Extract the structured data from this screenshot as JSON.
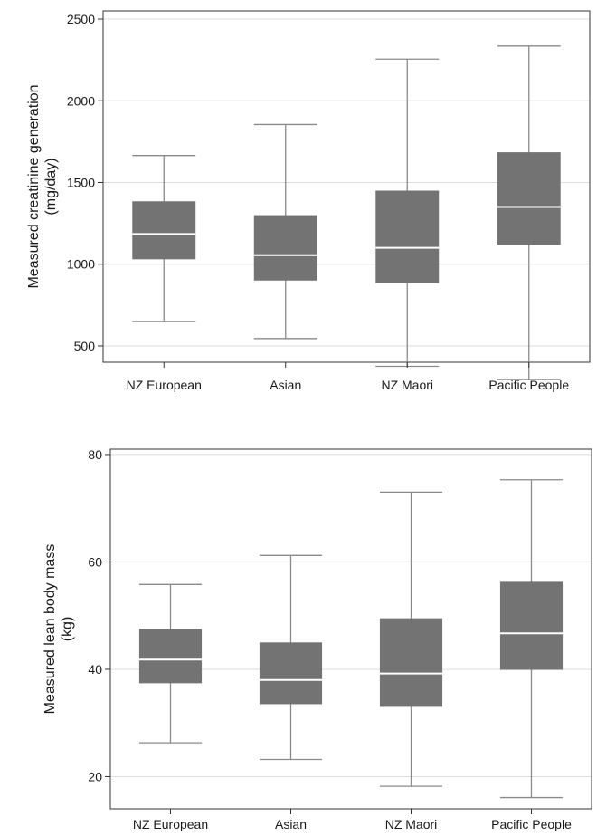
{
  "chart_data": [
    {
      "type": "box",
      "categories": [
        "NZ European",
        "Asian",
        "NZ Maori",
        "Pacific People"
      ],
      "ylabel_lines": [
        "Measured creatinine generation",
        "(mg/day)"
      ],
      "ylim": [
        400,
        2550
      ],
      "yticks": [
        500,
        1000,
        1500,
        2000,
        2500
      ],
      "grid": true,
      "series": [
        {
          "whisker_low": 650,
          "q1": 1030,
          "median": 1185,
          "q3": 1385,
          "whisker_high": 1665
        },
        {
          "whisker_low": 545,
          "q1": 900,
          "median": 1055,
          "q3": 1300,
          "whisker_high": 1855
        },
        {
          "whisker_low": 375,
          "q1": 885,
          "median": 1100,
          "q3": 1450,
          "whisker_high": 2255
        },
        {
          "whisker_low": 295,
          "q1": 1120,
          "median": 1350,
          "q3": 1685,
          "whisker_high": 2335
        }
      ]
    },
    {
      "type": "box",
      "categories": [
        "NZ European",
        "Asian",
        "NZ Maori",
        "Pacific People"
      ],
      "ylabel_lines": [
        "Measured lean body mass",
        "(kg)"
      ],
      "ylim": [
        14,
        81
      ],
      "yticks": [
        20,
        40,
        60,
        80
      ],
      "grid": true,
      "series": [
        {
          "whisker_low": 26.3,
          "q1": 37.4,
          "median": 41.8,
          "q3": 47.5,
          "whisker_high": 55.8
        },
        {
          "whisker_low": 23.2,
          "q1": 33.5,
          "median": 38.0,
          "q3": 45.0,
          "whisker_high": 61.2
        },
        {
          "whisker_low": 18.2,
          "q1": 33.0,
          "median": 39.2,
          "q3": 49.5,
          "whisker_high": 73.0
        },
        {
          "whisker_low": 16.1,
          "q1": 39.9,
          "median": 46.7,
          "q3": 56.3,
          "whisker_high": 75.3
        }
      ]
    }
  ],
  "colors": {
    "box_fill": "#737373",
    "median": "#ffffff",
    "whisker": "#8a8a8a",
    "grid": "#dcdcdc",
    "axis": "#333333"
  }
}
